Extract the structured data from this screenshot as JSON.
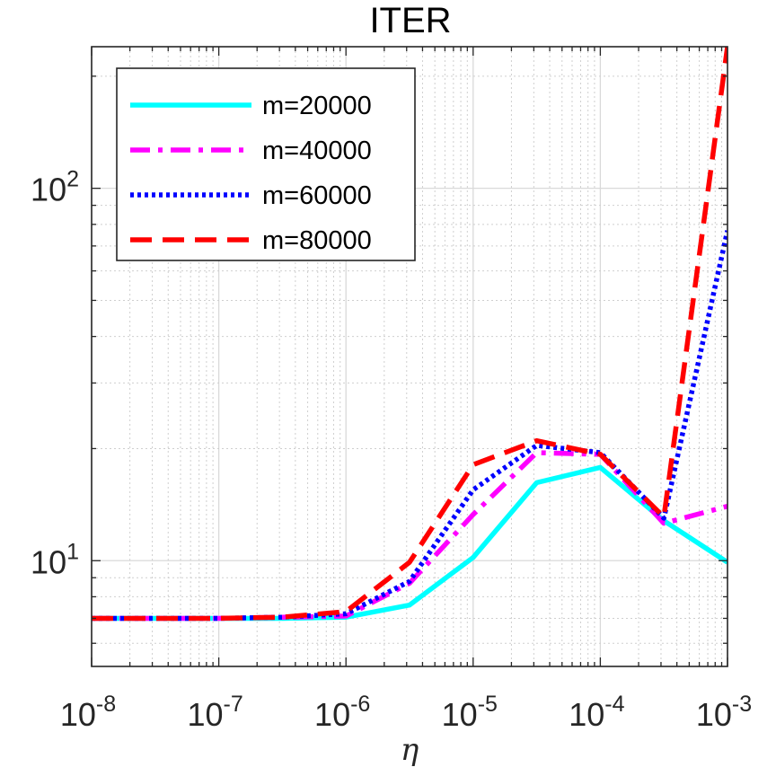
{
  "chart_data": {
    "type": "line",
    "title": "ITER",
    "xlabel": "η",
    "ylabel": "",
    "xscale": "log",
    "yscale": "log",
    "xlim": [
      1e-08,
      0.001
    ],
    "ylim": [
      5.2,
      240
    ],
    "grid": "major-and-minor",
    "legend_position": "top-left",
    "x": [
      1e-08,
      3.16e-08,
      1e-07,
      3.16e-07,
      1e-06,
      3.16e-06,
      1e-05,
      3.16e-05,
      0.0001,
      0.000316,
      0.001
    ],
    "x_tick_labels": [
      {
        "base": "10",
        "exp": "-8"
      },
      {
        "base": "10",
        "exp": "-7"
      },
      {
        "base": "10",
        "exp": "-6"
      },
      {
        "base": "10",
        "exp": "-5"
      },
      {
        "base": "10",
        "exp": "-4"
      },
      {
        "base": "10",
        "exp": "-3"
      }
    ],
    "y_tick_labels": [
      {
        "base": "10",
        "exp": "1"
      },
      {
        "base": "10",
        "exp": "2"
      }
    ],
    "series": [
      {
        "name": "m=20000",
        "color": "#00FFFF",
        "dash": "solid",
        "values": [
          7.0,
          7.0,
          7.0,
          7.0,
          7.05,
          7.6,
          10.2,
          16.2,
          17.8,
          12.8,
          9.9
        ]
      },
      {
        "name": "m=40000",
        "color": "#FF00FF",
        "dash": "dashdot",
        "values": [
          7.0,
          7.0,
          7.0,
          7.05,
          7.1,
          8.7,
          13.3,
          19.5,
          19.3,
          12.6,
          14.0
        ]
      },
      {
        "name": "m=60000",
        "color": "#0000FF",
        "dash": "dotted",
        "values": [
          7.0,
          7.0,
          7.0,
          7.05,
          7.2,
          8.8,
          15.5,
          20.4,
          19.5,
          13.0,
          77.0
        ]
      },
      {
        "name": "m=80000",
        "color": "#FF0000",
        "dash": "dashed",
        "values": [
          7.0,
          7.0,
          7.0,
          7.05,
          7.3,
          9.9,
          18.1,
          21.0,
          19.3,
          13.1,
          240.0
        ]
      }
    ]
  }
}
